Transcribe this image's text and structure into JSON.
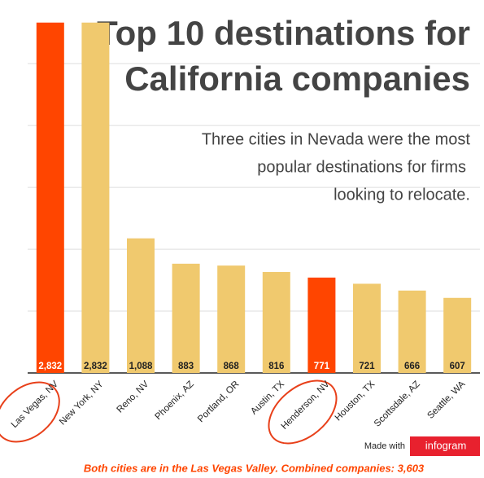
{
  "chart_data": {
    "type": "bar",
    "title": [
      "Top 10 destinations for",
      "California companies"
    ],
    "subtitle": [
      "Three cities in Nevada were the most",
      "popular destinations for firms",
      "looking to relocate."
    ],
    "categories": [
      "Las Vegas, NV",
      "New York, NY",
      "Reno, NV",
      "Phoenix, AZ",
      "Portland, OR",
      "Austin, TX",
      "Henderson, NV",
      "Houston, TX",
      "Scottsdale, AZ",
      "Seattle, WA"
    ],
    "values": [
      2832,
      2832,
      1088,
      883,
      868,
      816,
      771,
      721,
      666,
      607
    ],
    "value_labels": [
      "2,832",
      "2,832",
      "1,088",
      "883",
      "868",
      "816",
      "771",
      "721",
      "666",
      "607"
    ],
    "colors": [
      "#ff4500",
      "#f0c96e",
      "#f0c96e",
      "#f0c96e",
      "#f0c96e",
      "#f0c96e",
      "#ff4500",
      "#f0c96e",
      "#f0c96e",
      "#f0c96e"
    ],
    "ylim": [
      0,
      2850
    ],
    "yticks": [
      0,
      500,
      1000,
      1500,
      2000,
      2500
    ],
    "grid": true,
    "note": "Both cities are in the Las Vegas Valley. Combined companies: 3,603",
    "credit": "Made with",
    "brand": "infogram"
  }
}
